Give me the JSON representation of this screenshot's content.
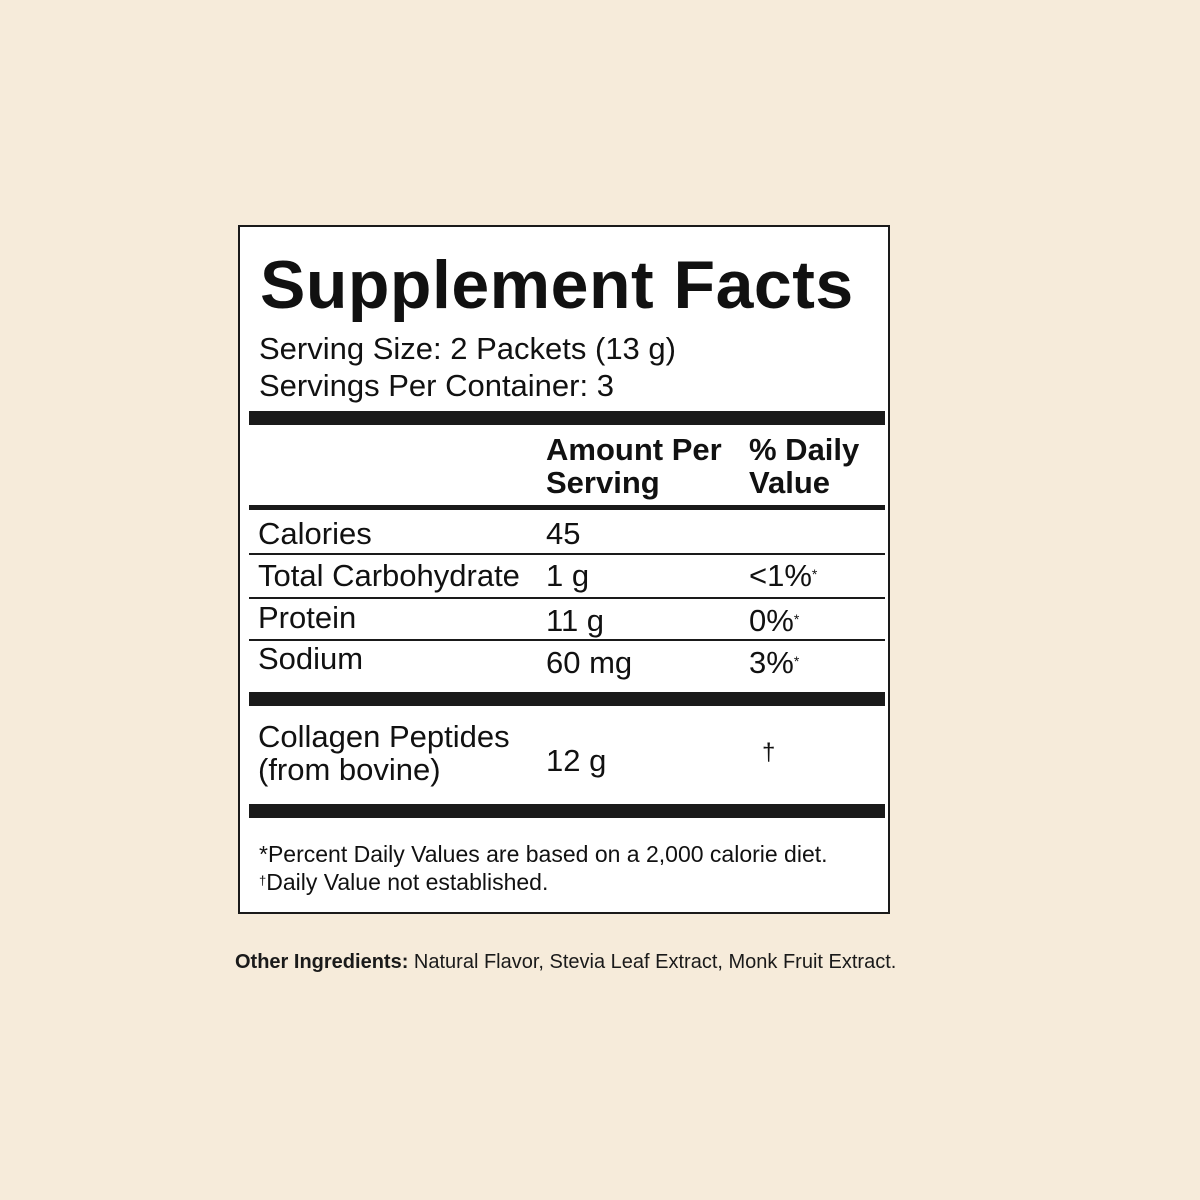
{
  "label": {
    "title": "Supplement Facts",
    "serving_size": "Serving Size: 2 Packets (13 g)",
    "servings_per_container": "Servings Per Container: 3",
    "header": {
      "amount_line1": "Amount Per",
      "amount_line2": "Serving",
      "dv_line1": "% Daily",
      "dv_line2": "Value"
    },
    "rows": [
      {
        "name": "Calories",
        "amount": "45",
        "dv": "",
        "mark": ""
      },
      {
        "name": "Total Carbohydrate",
        "amount": "1 g",
        "dv": "<1%",
        "mark": "*"
      },
      {
        "name": "Protein",
        "amount": "11 g",
        "dv": "0%",
        "mark": "*"
      },
      {
        "name": "Sodium",
        "amount": "60 mg",
        "dv": "3%",
        "mark": "*"
      }
    ],
    "collagen": {
      "name_line1": "Collagen Peptides",
      "name_line2": "(from bovine)",
      "amount": "12 g",
      "dv": "†"
    },
    "footnotes": {
      "percent_note": "*Percent Daily Values are based on a 2,000 calorie diet.",
      "dagger_mark": "†",
      "dagger_note": "Daily Value not established."
    }
  },
  "other_ingredients": {
    "label": "Other Ingredients:",
    "text": " Natural Flavor, Stevia Leaf Extract, Monk Fruit Extract."
  },
  "colors": {
    "background": "#f6ebda",
    "panel": "#ffffff",
    "ink": "#1a1a1a"
  }
}
